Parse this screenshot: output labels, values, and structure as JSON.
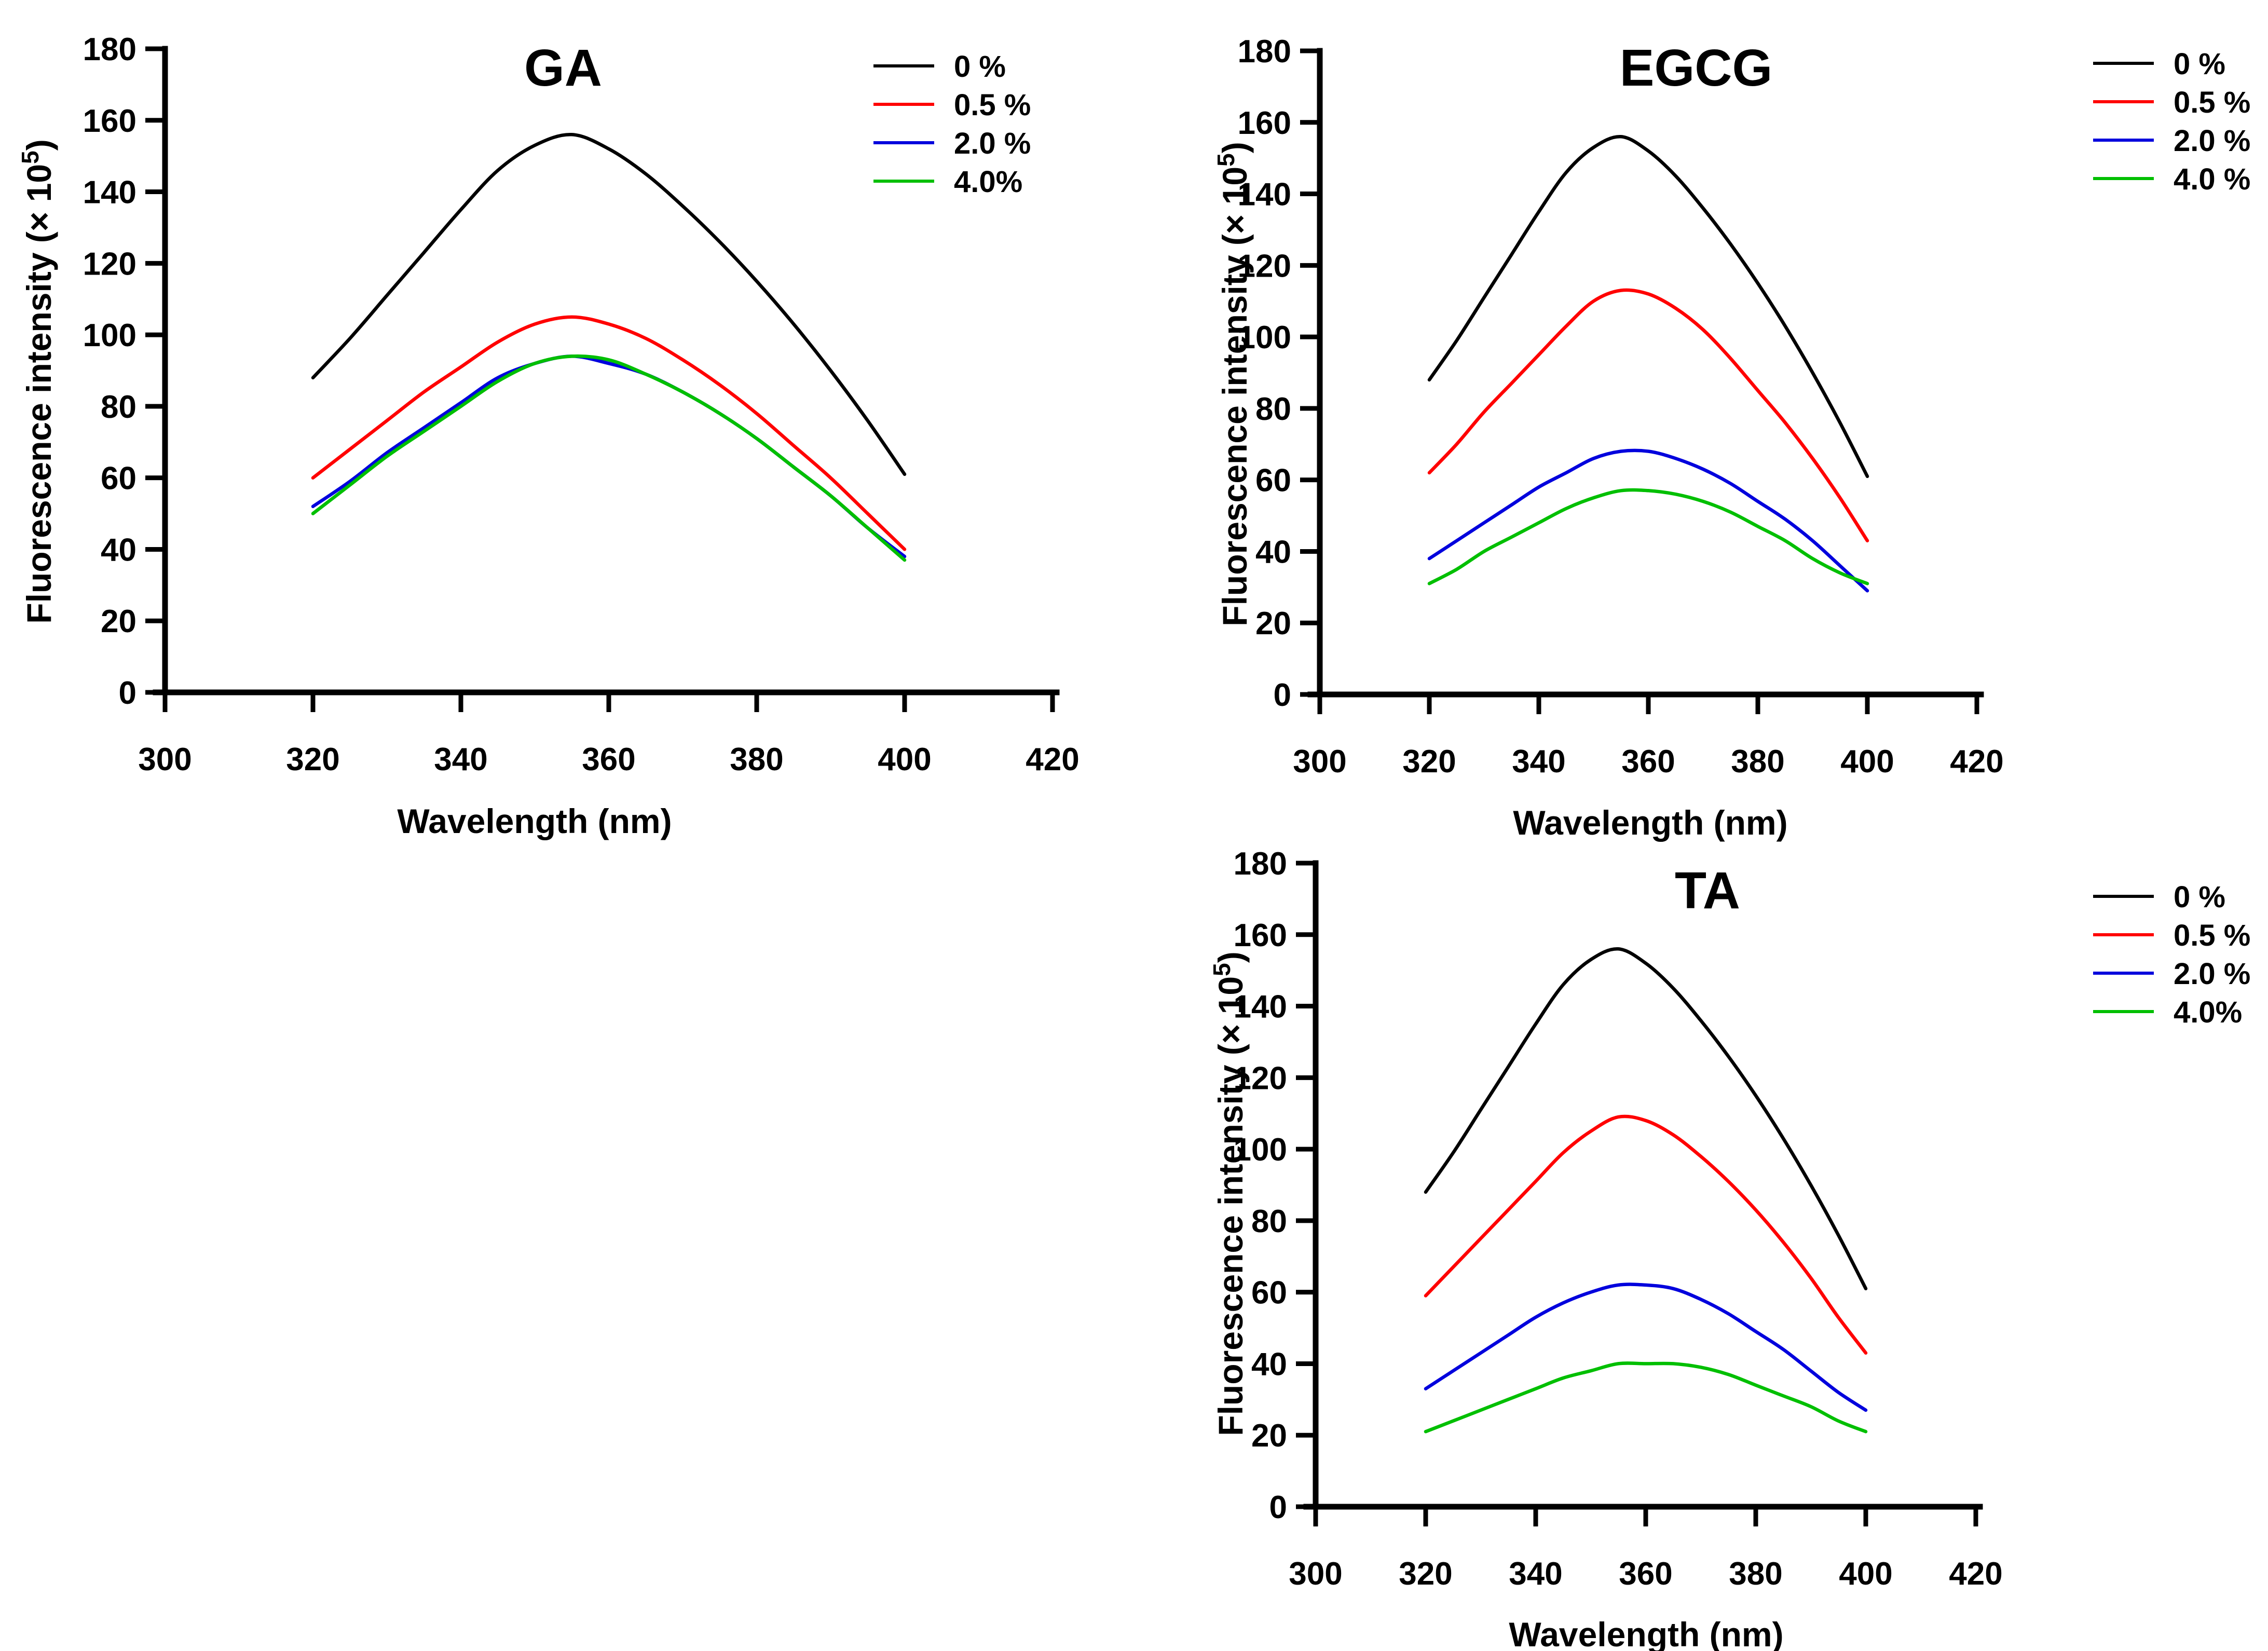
{
  "figure": {
    "background": "#ffffff",
    "description": "Three fluorescence quenching spectra panels",
    "panel_count": 3
  },
  "chart_data": [
    {
      "id": "GA",
      "type": "line",
      "title": "GA",
      "xlabel": "Wavelength (nm)",
      "ylabel": {
        "prefix": "Fluorescence intensity (× 10",
        "superscript": "5",
        "suffix": ")"
      },
      "xlim": [
        300,
        420
      ],
      "ylim": [
        0,
        180
      ],
      "xticks": [
        300,
        320,
        340,
        360,
        380,
        400,
        420
      ],
      "yticks": [
        0,
        20,
        40,
        60,
        80,
        100,
        120,
        140,
        160,
        180
      ],
      "grid": false,
      "legend_position": "top-right-inside",
      "x": [
        320,
        325,
        330,
        335,
        340,
        345,
        350,
        355,
        360,
        365,
        370,
        375,
        380,
        385,
        390,
        395,
        400
      ],
      "series": [
        {
          "name": "0 %",
          "color": "#000000",
          "values": [
            88,
            99,
            111,
            123,
            135,
            146,
            153,
            156,
            152,
            145,
            136,
            126,
            115,
            103,
            90,
            76,
            61
          ]
        },
        {
          "name": "0.5 %",
          "color": "#ff0000",
          "values": [
            60,
            68,
            76,
            84,
            91,
            98,
            103,
            105,
            103,
            99,
            93,
            86,
            78,
            69,
            60,
            50,
            40
          ]
        },
        {
          "name": "2.0 %",
          "color": "#0000dd",
          "values": [
            52,
            59,
            67,
            74,
            81,
            88,
            92,
            94,
            92,
            89,
            84,
            78,
            71,
            63,
            55,
            46,
            38
          ]
        },
        {
          "name": "4.0%",
          "color": "#00bf00",
          "values": [
            50,
            58,
            66,
            73,
            80,
            87,
            92,
            94,
            93,
            89,
            84,
            78,
            71,
            63,
            55,
            46,
            37
          ]
        }
      ]
    },
    {
      "id": "EGCG",
      "type": "line",
      "title": "EGCG",
      "xlabel": "Wavelength (nm)",
      "ylabel": {
        "prefix": "Fluorescence intensity (× 10",
        "superscript": "5",
        "suffix": ")"
      },
      "xlim": [
        300,
        420
      ],
      "ylim": [
        0,
        180
      ],
      "xticks": [
        300,
        320,
        340,
        360,
        380,
        400,
        420
      ],
      "yticks": [
        0,
        20,
        40,
        60,
        80,
        100,
        120,
        140,
        160,
        180
      ],
      "grid": false,
      "legend_position": "top-right-outside",
      "x": [
        320,
        325,
        330,
        335,
        340,
        345,
        350,
        355,
        360,
        365,
        370,
        375,
        380,
        385,
        390,
        395,
        400
      ],
      "series": [
        {
          "name": "0 %",
          "color": "#000000",
          "values": [
            88,
            99,
            111,
            123,
            135,
            146,
            153,
            156,
            152,
            145,
            136,
            126,
            115,
            103,
            90,
            76,
            61
          ]
        },
        {
          "name": "0.5 %",
          "color": "#ff0000",
          "values": [
            62,
            70,
            79,
            87,
            95,
            103,
            110,
            113,
            112,
            108,
            102,
            94,
            85,
            76,
            66,
            55,
            43
          ]
        },
        {
          "name": "2.0 %",
          "color": "#0000dd",
          "values": [
            38,
            43,
            48,
            53,
            58,
            62,
            66,
            68,
            68,
            66,
            63,
            59,
            54,
            49,
            43,
            36,
            29
          ]
        },
        {
          "name": "4.0 %",
          "color": "#00bf00",
          "values": [
            31,
            35,
            40,
            44,
            48,
            52,
            55,
            57,
            57,
            56,
            54,
            51,
            47,
            43,
            38,
            34,
            31
          ]
        }
      ]
    },
    {
      "id": "TA",
      "type": "line",
      "title": "TA",
      "xlabel": "Wavelength (nm)",
      "ylabel": {
        "prefix": "Fluorescence intensity (× 10",
        "superscript": "5",
        "suffix": ")"
      },
      "xlim": [
        300,
        420
      ],
      "ylim": [
        0,
        180
      ],
      "xticks": [
        300,
        320,
        340,
        360,
        380,
        400,
        420
      ],
      "yticks": [
        0,
        20,
        40,
        60,
        80,
        100,
        120,
        140,
        160,
        180
      ],
      "grid": false,
      "legend_position": "top-right-outside",
      "x": [
        320,
        325,
        330,
        335,
        340,
        345,
        350,
        355,
        360,
        365,
        370,
        375,
        380,
        385,
        390,
        395,
        400
      ],
      "series": [
        {
          "name": "0 %",
          "color": "#000000",
          "values": [
            88,
            99,
            111,
            123,
            135,
            146,
            153,
            156,
            152,
            145,
            136,
            126,
            115,
            103,
            90,
            76,
            61
          ]
        },
        {
          "name": "0.5 %",
          "color": "#ff0000",
          "values": [
            59,
            67,
            75,
            83,
            91,
            99,
            105,
            109,
            108,
            104,
            98,
            91,
            83,
            74,
            64,
            53,
            43
          ]
        },
        {
          "name": "2.0 %",
          "color": "#0000dd",
          "values": [
            33,
            38,
            43,
            48,
            53,
            57,
            60,
            62,
            62,
            61,
            58,
            54,
            49,
            44,
            38,
            32,
            27
          ]
        },
        {
          "name": "4.0%",
          "color": "#00bf00",
          "values": [
            21,
            24,
            27,
            30,
            33,
            36,
            38,
            40,
            40,
            40,
            39,
            37,
            34,
            31,
            28,
            24,
            21
          ]
        }
      ]
    }
  ]
}
